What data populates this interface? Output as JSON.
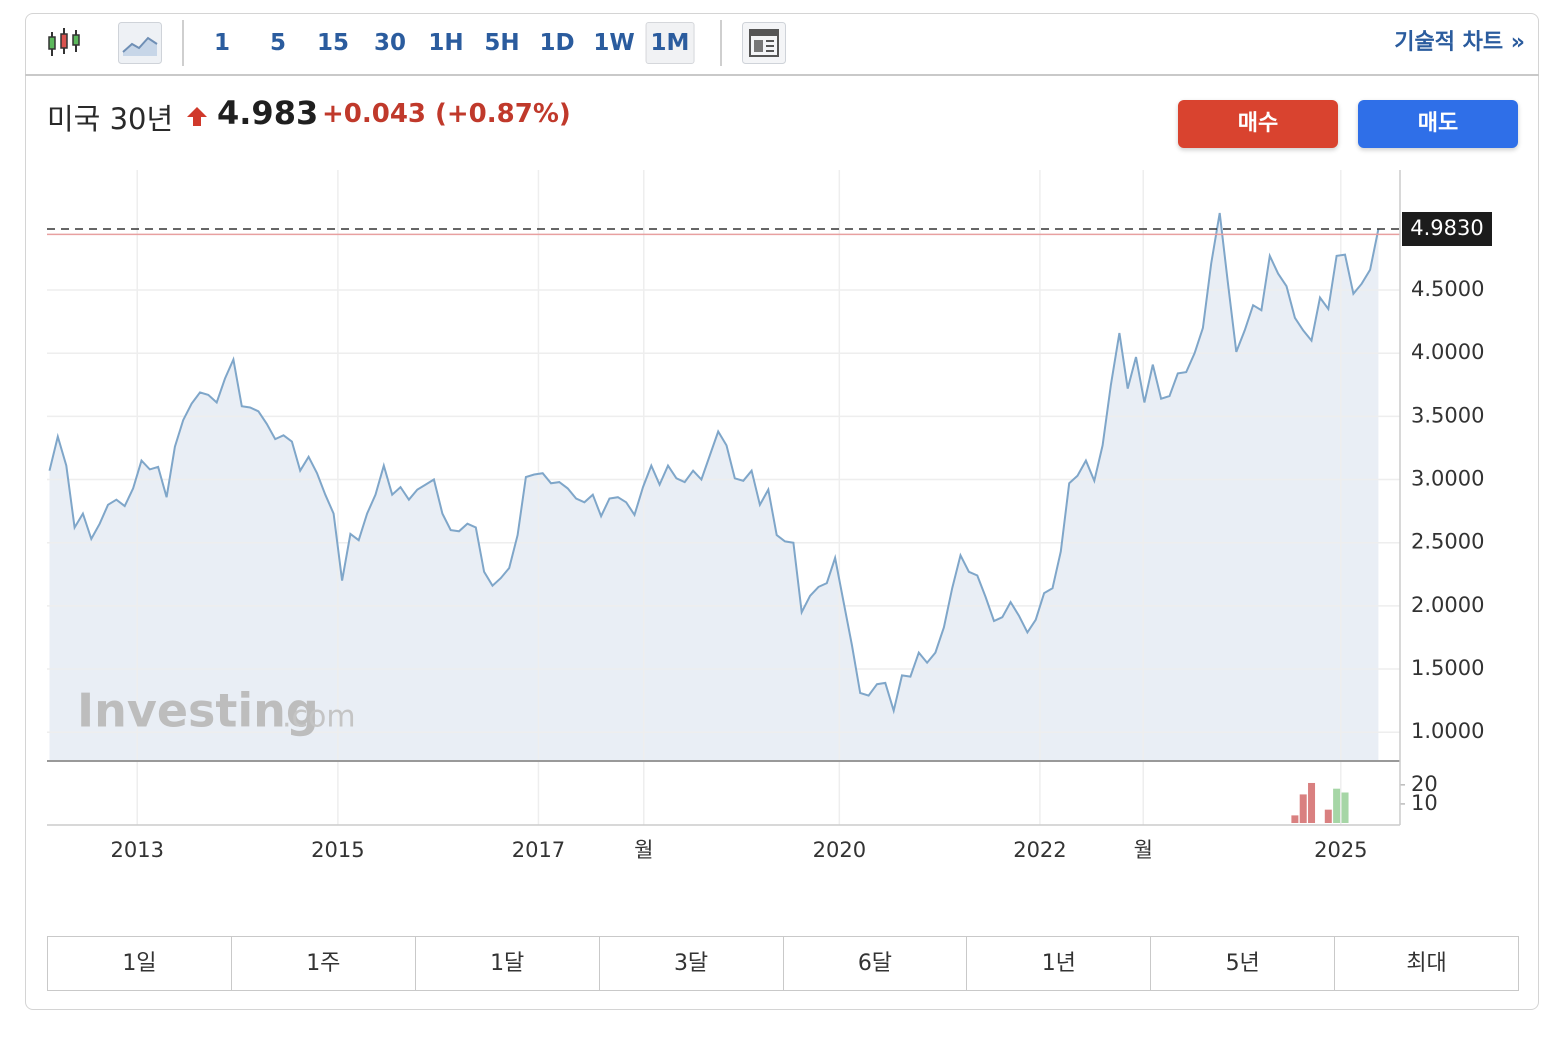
{
  "toolbar": {
    "intervals": [
      "1",
      "5",
      "15",
      "30",
      "1H",
      "5H",
      "1D",
      "1W",
      "1M"
    ],
    "active_interval": 8,
    "technical_link": "기술적 차트 »"
  },
  "header": {
    "name": "미국 30년",
    "price": "4.983",
    "change": "+0.043",
    "change_percent": "(+0.87%)"
  },
  "buttons": {
    "buy": "매수",
    "sell": "매도"
  },
  "watermark": {
    "brand": "Investing",
    "domain": ".com"
  },
  "ranges": [
    "1일",
    "1주",
    "1달",
    "3달",
    "6달",
    "1년",
    "5년",
    "최대"
  ],
  "chart_data": [
    {
      "type": "area",
      "color": "#7fa6c9",
      "fill": "#e9eef5",
      "grid": true,
      "x": [
        2012.125,
        2012.208,
        2012.292,
        2012.375,
        2012.458,
        2012.542,
        2012.625,
        2012.708,
        2012.792,
        2012.875,
        2012.958,
        2013.042,
        2013.125,
        2013.208,
        2013.292,
        2013.375,
        2013.458,
        2013.542,
        2013.625,
        2013.708,
        2013.792,
        2013.875,
        2013.958,
        2014.042,
        2014.125,
        2014.208,
        2014.292,
        2014.375,
        2014.458,
        2014.542,
        2014.625,
        2014.708,
        2014.792,
        2014.875,
        2014.958,
        2015.042,
        2015.125,
        2015.208,
        2015.292,
        2015.375,
        2015.458,
        2015.542,
        2015.625,
        2015.708,
        2015.792,
        2015.875,
        2015.958,
        2016.042,
        2016.125,
        2016.208,
        2016.292,
        2016.375,
        2016.458,
        2016.542,
        2016.625,
        2016.708,
        2016.792,
        2016.875,
        2016.958,
        2017.042,
        2017.125,
        2017.208,
        2017.292,
        2017.375,
        2017.458,
        2017.542,
        2017.625,
        2017.708,
        2017.792,
        2017.875,
        2017.958,
        2018.042,
        2018.125,
        2018.208,
        2018.292,
        2018.375,
        2018.458,
        2018.542,
        2018.625,
        2018.708,
        2018.792,
        2018.875,
        2018.958,
        2019.042,
        2019.125,
        2019.208,
        2019.292,
        2019.375,
        2019.458,
        2019.542,
        2019.625,
        2019.708,
        2019.792,
        2019.875,
        2019.958,
        2020.042,
        2020.125,
        2020.208,
        2020.292,
        2020.375,
        2020.458,
        2020.542,
        2020.625,
        2020.708,
        2020.792,
        2020.875,
        2020.958,
        2021.042,
        2021.125,
        2021.208,
        2021.292,
        2021.375,
        2021.458,
        2021.542,
        2021.625,
        2021.708,
        2021.792,
        2021.875,
        2021.958,
        2022.042,
        2022.125,
        2022.208,
        2022.292,
        2022.375,
        2022.458,
        2022.542,
        2022.625,
        2022.708,
        2022.792,
        2022.875,
        2022.958,
        2023.042,
        2023.125,
        2023.208,
        2023.292,
        2023.375,
        2023.458,
        2023.542,
        2023.625,
        2023.708,
        2023.792,
        2023.875,
        2023.958,
        2024.042,
        2024.125,
        2024.208,
        2024.292,
        2024.375,
        2024.458,
        2024.542,
        2024.625,
        2024.708,
        2024.792,
        2024.875,
        2024.958,
        2025.042,
        2025.125,
        2025.208,
        2025.292,
        2025.375
      ],
      "values": [
        3.07,
        3.34,
        3.11,
        2.62,
        2.73,
        2.53,
        2.65,
        2.8,
        2.84,
        2.79,
        2.93,
        3.15,
        3.08,
        3.1,
        2.86,
        3.26,
        3.47,
        3.6,
        3.69,
        3.67,
        3.61,
        3.8,
        3.95,
        3.58,
        3.57,
        3.54,
        3.44,
        3.32,
        3.35,
        3.3,
        3.07,
        3.18,
        3.05,
        2.88,
        2.73,
        2.2,
        2.57,
        2.52,
        2.73,
        2.88,
        3.11,
        2.88,
        2.94,
        2.84,
        2.92,
        2.96,
        3.0,
        2.73,
        2.6,
        2.59,
        2.65,
        2.62,
        2.27,
        2.16,
        2.22,
        2.3,
        2.56,
        3.02,
        3.04,
        3.05,
        2.97,
        2.98,
        2.93,
        2.85,
        2.82,
        2.88,
        2.71,
        2.85,
        2.86,
        2.82,
        2.72,
        2.94,
        3.11,
        2.96,
        3.11,
        3.01,
        2.98,
        3.07,
        3.0,
        3.19,
        3.38,
        3.27,
        3.01,
        2.99,
        3.07,
        2.8,
        2.92,
        2.56,
        2.51,
        2.5,
        1.95,
        2.08,
        2.15,
        2.18,
        2.38,
        2.03,
        1.69,
        1.31,
        1.29,
        1.38,
        1.39,
        1.17,
        1.45,
        1.44,
        1.63,
        1.55,
        1.63,
        1.83,
        2.14,
        2.4,
        2.27,
        2.24,
        2.07,
        1.88,
        1.91,
        2.03,
        1.92,
        1.79,
        1.89,
        2.1,
        2.14,
        2.43,
        2.97,
        3.03,
        3.15,
        2.99,
        3.27,
        3.75,
        4.16,
        3.72,
        3.97,
        3.61,
        3.91,
        3.64,
        3.66,
        3.84,
        3.85,
        4.0,
        4.2,
        4.71,
        5.11,
        4.55,
        4.01,
        4.18,
        4.38,
        4.34,
        4.77,
        4.63,
        4.53,
        4.28,
        4.18,
        4.1,
        4.44,
        4.35,
        4.77,
        4.78,
        4.47,
        4.55,
        4.66,
        4.983
      ],
      "xlim": [
        2012.1,
        2025.59
      ],
      "ylim": [
        0.78,
        5.45
      ],
      "xticks": [
        2013,
        2015,
        2017,
        {
          "value": 2018.05,
          "label": "월"
        },
        2020,
        2022,
        {
          "value": 2023.03,
          "label": "월"
        },
        2025
      ],
      "yticks": [
        {
          "value": 1,
          "label": "1.0000"
        },
        {
          "value": 1.5,
          "label": "1.5000"
        },
        {
          "value": 2,
          "label": "2.0000"
        },
        {
          "value": 2.5,
          "label": "2.5000"
        },
        {
          "value": 3,
          "label": "3.0000"
        },
        {
          "value": 3.5,
          "label": "3.5000"
        },
        {
          "value": 4,
          "label": "4.0000"
        },
        {
          "value": 4.5,
          "label": "4.5000"
        }
      ],
      "price_line": {
        "value": 4.983,
        "label": "4.9830"
      },
      "prev_close": 4.94
    },
    {
      "type": "bar",
      "x": [
        2024.542,
        2024.625,
        2024.708,
        2024.875,
        2024.958,
        2025.042
      ],
      "values": [
        4,
        15,
        21,
        7,
        18,
        16
      ],
      "colors": [
        "#d98080",
        "#d98080",
        "#d98080",
        "#d98080",
        "#a6d6a6",
        "#a6d6a6"
      ],
      "xlim": [
        2012.1,
        2025.59
      ],
      "ylim": [
        0,
        32
      ],
      "yticks": [
        10,
        20
      ]
    }
  ]
}
